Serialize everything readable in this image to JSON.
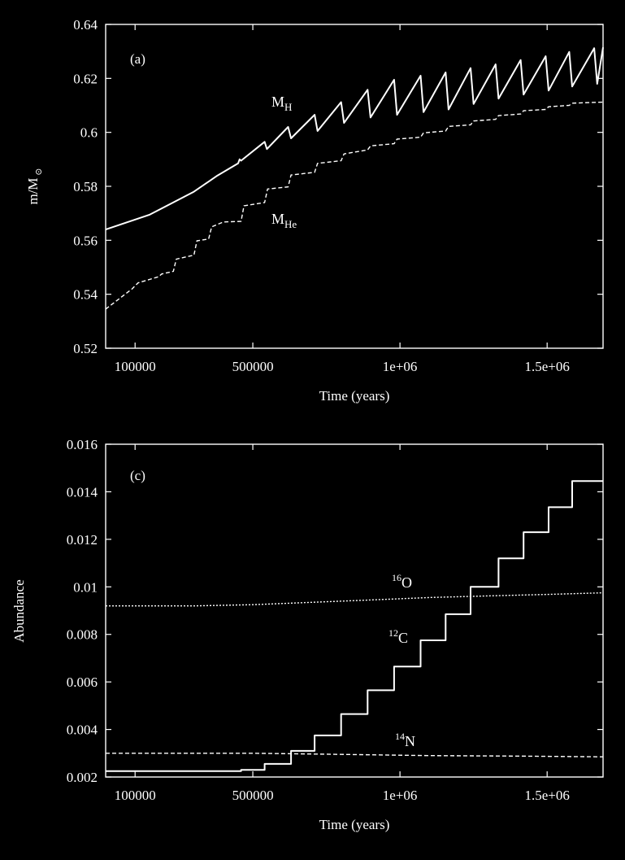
{
  "chart_data": [
    {
      "panel_label": "(a)",
      "type": "line",
      "xlabel": "Time (years)",
      "ylabel": "m/M",
      "ylabel_symbol": "⊙",
      "xlim": [
        0,
        1690000
      ],
      "ylim": [
        0.52,
        0.64
      ],
      "x_ticks": [
        100000,
        500000,
        1000000,
        1500000
      ],
      "x_tick_labels": [
        "100000",
        "500000",
        "1e+06",
        "1.5e+06"
      ],
      "y_ticks": [
        0.52,
        0.54,
        0.56,
        0.58,
        0.6,
        0.62,
        0.64
      ],
      "y_tick_labels": [
        "0.52",
        "0.54",
        "0.56",
        "0.58",
        "0.6",
        "0.62",
        "0.64"
      ],
      "series": [
        {
          "name": "M_H",
          "style": "solid",
          "points": [
            [
              0,
              0.564
            ],
            [
              150000,
              0.5695
            ],
            [
              300000,
              0.578
            ],
            [
              380000,
              0.584
            ],
            [
              450000,
              0.5885
            ],
            [
              455000,
              0.59
            ],
            [
              460000,
              0.5895
            ],
            [
              540000,
              0.5965
            ],
            [
              548000,
              0.5938
            ],
            [
              620000,
              0.602
            ],
            [
              630000,
              0.5978
            ],
            [
              710000,
              0.6065
            ],
            [
              720000,
              0.6005
            ],
            [
              800000,
              0.6112
            ],
            [
              810000,
              0.6035
            ],
            [
              890000,
              0.6158
            ],
            [
              900000,
              0.6055
            ],
            [
              980000,
              0.6195
            ],
            [
              990000,
              0.6065
            ],
            [
              1070000,
              0.621
            ],
            [
              1080000,
              0.6075
            ],
            [
              1155000,
              0.6222
            ],
            [
              1165000,
              0.6085
            ],
            [
              1240000,
              0.6238
            ],
            [
              1250000,
              0.6105
            ],
            [
              1325000,
              0.6252
            ],
            [
              1335000,
              0.6125
            ],
            [
              1410000,
              0.6268
            ],
            [
              1420000,
              0.614
            ],
            [
              1495000,
              0.6282
            ],
            [
              1505000,
              0.6155
            ],
            [
              1575000,
              0.6298
            ],
            [
              1585000,
              0.617
            ],
            [
              1660000,
              0.6312
            ],
            [
              1670000,
              0.618
            ],
            [
              1690000,
              0.6315
            ]
          ],
          "label": "M",
          "label_sub": "H"
        },
        {
          "name": "M_He",
          "style": "dashed",
          "points": [
            [
              0,
              0.5345
            ],
            [
              90000,
              0.542
            ],
            [
              110000,
              0.5442
            ],
            [
              180000,
              0.5465
            ],
            [
              190000,
              0.5475
            ],
            [
              230000,
              0.5485
            ],
            [
              240000,
              0.553
            ],
            [
              300000,
              0.5545
            ],
            [
              310000,
              0.5598
            ],
            [
              350000,
              0.5605
            ],
            [
              360000,
              0.565
            ],
            [
              400000,
              0.5668
            ],
            [
              460000,
              0.567
            ],
            [
              470000,
              0.5728
            ],
            [
              540000,
              0.574
            ],
            [
              550000,
              0.579
            ],
            [
              620000,
              0.5798
            ],
            [
              630000,
              0.5842
            ],
            [
              710000,
              0.5852
            ],
            [
              720000,
              0.5885
            ],
            [
              800000,
              0.5895
            ],
            [
              810000,
              0.592
            ],
            [
              890000,
              0.5935
            ],
            [
              900000,
              0.595
            ],
            [
              980000,
              0.5958
            ],
            [
              990000,
              0.5975
            ],
            [
              1070000,
              0.5982
            ],
            [
              1080000,
              0.5998
            ],
            [
              1155000,
              0.6005
            ],
            [
              1165000,
              0.6022
            ],
            [
              1240000,
              0.6028
            ],
            [
              1250000,
              0.6042
            ],
            [
              1325000,
              0.6048
            ],
            [
              1335000,
              0.6062
            ],
            [
              1410000,
              0.6068
            ],
            [
              1420000,
              0.608
            ],
            [
              1495000,
              0.6085
            ],
            [
              1505000,
              0.6095
            ],
            [
              1575000,
              0.61
            ],
            [
              1585000,
              0.6108
            ],
            [
              1690000,
              0.6112
            ]
          ],
          "label": "M",
          "label_sub": "He"
        }
      ]
    },
    {
      "panel_label": "(c)",
      "type": "line",
      "xlabel": "Time (years)",
      "ylabel": "Abundance",
      "xlim": [
        0,
        1690000
      ],
      "ylim": [
        0.002,
        0.016
      ],
      "x_ticks": [
        100000,
        500000,
        1000000,
        1500000
      ],
      "x_tick_labels": [
        "100000",
        "500000",
        "1e+06",
        "1.5e+06"
      ],
      "y_ticks": [
        0.002,
        0.004,
        0.006,
        0.008,
        0.01,
        0.012,
        0.014,
        0.016
      ],
      "y_tick_labels": [
        "0.002",
        "0.004",
        "0.006",
        "0.008",
        "0.01",
        "0.012",
        "0.014",
        "0.016"
      ],
      "series": [
        {
          "name": "12C",
          "style": "solid",
          "points": [
            [
              0,
              0.00225
            ],
            [
              460000,
              0.00225
            ],
            [
              460000,
              0.0023
            ],
            [
              540000,
              0.0023
            ],
            [
              540000,
              0.00255
            ],
            [
              630000,
              0.00255
            ],
            [
              630000,
              0.0031
            ],
            [
              710000,
              0.0031
            ],
            [
              710000,
              0.00375
            ],
            [
              800000,
              0.00375
            ],
            [
              800000,
              0.00465
            ],
            [
              890000,
              0.00465
            ],
            [
              890000,
              0.00565
            ],
            [
              980000,
              0.00565
            ],
            [
              980000,
              0.00665
            ],
            [
              1070000,
              0.00665
            ],
            [
              1070000,
              0.00775
            ],
            [
              1155000,
              0.00775
            ],
            [
              1155000,
              0.00885
            ],
            [
              1240000,
              0.00885
            ],
            [
              1240000,
              0.01
            ],
            [
              1335000,
              0.01
            ],
            [
              1335000,
              0.0112
            ],
            [
              1420000,
              0.0112
            ],
            [
              1420000,
              0.0123
            ],
            [
              1505000,
              0.0123
            ],
            [
              1505000,
              0.01335
            ],
            [
              1585000,
              0.01335
            ],
            [
              1585000,
              0.01445
            ],
            [
              1690000,
              0.01445
            ]
          ],
          "label_sup": "12",
          "label": "C"
        },
        {
          "name": "16O",
          "style": "dotted",
          "points": [
            [
              0,
              0.0092
            ],
            [
              300000,
              0.0092
            ],
            [
              500000,
              0.00925
            ],
            [
              700000,
              0.00935
            ],
            [
              900000,
              0.00945
            ],
            [
              1100000,
              0.00955
            ],
            [
              1300000,
              0.00962
            ],
            [
              1500000,
              0.00968
            ],
            [
              1690000,
              0.00975
            ]
          ],
          "label_sup": "16",
          "label": "O"
        },
        {
          "name": "14N",
          "style": "dashed",
          "points": [
            [
              0,
              0.003
            ],
            [
              500000,
              0.003
            ],
            [
              800000,
              0.00295
            ],
            [
              1100000,
              0.0029
            ],
            [
              1400000,
              0.00288
            ],
            [
              1690000,
              0.00285
            ]
          ],
          "label_sup": "14",
          "label": "N"
        }
      ]
    }
  ]
}
